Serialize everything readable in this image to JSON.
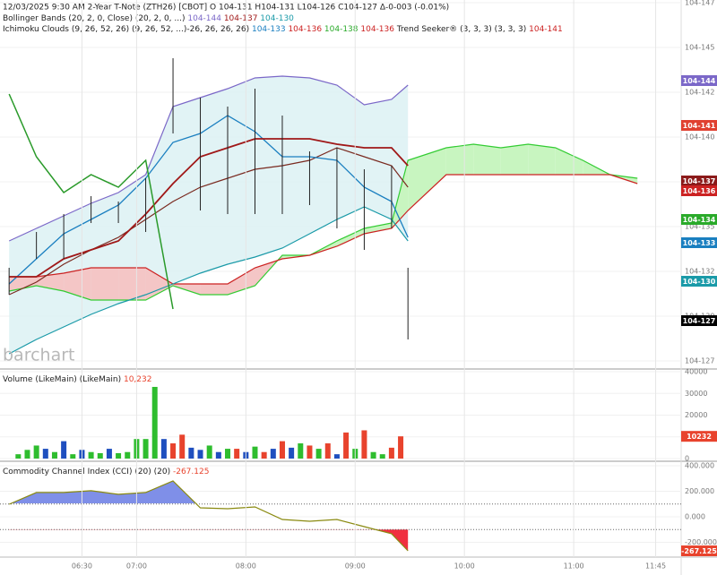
{
  "chart_data": [
    {
      "type": "ichimoku",
      "title": "12/03/2025  9:30 AM 2-Year T-Note (ZTH26) [CBOT] O 104-131 H104-131 L104-126 C104-127 Δ-0-003 (-0.01%)",
      "legend": [
        [
          {
            "text": "Bollinger Bands (20, 2, 0, Close) (20, 2, 0, ...)",
            "color": "#222"
          },
          {
            "text": " 104-144",
            "color": "#7b68c8"
          },
          {
            "text": " 104-137",
            "color": "#a01818"
          },
          {
            "text": " 104-130",
            "color": "#1a9aa8"
          }
        ],
        [
          {
            "text": "Ichimoku Clouds (9, 26, 52, 26) (9, 26, 52, ...)-26, 26, 26, 26)",
            "color": "#222"
          },
          {
            "text": " 104-133",
            "color": "#1a7fc0"
          },
          {
            "text": " 104-136",
            "color": "#cc2222"
          },
          {
            "text": " 104-138",
            "color": "#2aaa2a"
          },
          {
            "text": " 104-136",
            "color": "#cc2222"
          },
          {
            "text": " Trend Seeker® (3, 3, 3) (3, 3, 3)",
            "color": "#222"
          },
          {
            "text": " 104-141",
            "color": "#cc2222"
          }
        ]
      ],
      "watermark": "barchart",
      "x": [
        350,
        365,
        380,
        395,
        410,
        425,
        440,
        455,
        470,
        485,
        500,
        515,
        530,
        545,
        560,
        569,
        590,
        605,
        620,
        635,
        650,
        665,
        680,
        695
      ],
      "xlim": [
        345,
        719
      ],
      "ylim": [
        12.715,
        14.765
      ],
      "yticks": [
        {
          "value": 14.75,
          "label": "104-147"
        },
        {
          "value": 14.5,
          "label": "104-145"
        },
        {
          "value": 14.25,
          "label": "104-142"
        },
        {
          "value": 14.0,
          "label": "104-140"
        },
        {
          "value": 13.75,
          "label": "104-137"
        },
        {
          "value": 13.5,
          "label": "104-135"
        },
        {
          "value": 13.25,
          "label": "104-132"
        },
        {
          "value": 13.0,
          "label": "104-130"
        },
        {
          "value": 12.75,
          "label": "104-127"
        }
      ],
      "bollinger": {
        "fill": "#d9f0f2",
        "upper": {
          "color": "#7b68c8",
          "values": [
            13.42,
            13.49,
            13.56,
            13.63,
            13.69,
            13.79,
            14.17,
            14.22,
            14.27,
            14.33,
            14.34,
            14.33,
            14.29,
            14.18,
            14.21,
            14.29,
            null,
            null,
            null,
            null,
            null,
            null,
            null,
            null
          ]
        },
        "middle": {
          "color": "#7a2a20",
          "values": [
            13.12,
            13.19,
            13.29,
            13.37,
            13.44,
            13.54,
            13.64,
            13.72,
            13.77,
            13.82,
            13.84,
            13.87,
            13.94,
            13.89,
            13.84,
            13.72,
            null,
            null,
            null,
            null,
            null,
            null,
            null,
            null
          ]
        },
        "lower": {
          "color": "#1a9aa8",
          "values": [
            12.79,
            12.87,
            12.94,
            13.01,
            13.07,
            13.12,
            13.18,
            13.24,
            13.29,
            13.33,
            13.38,
            13.46,
            13.54,
            13.61,
            13.54,
            13.42,
            null,
            null,
            null,
            null,
            null,
            null,
            null,
            null
          ]
        }
      },
      "ichimoku": {
        "up_fill": "#c8f5c0",
        "down_fill": "#f4c6c6",
        "conversion": {
          "color": "#1a7fc0",
          "values": [
            13.18,
            13.32,
            13.46,
            13.54,
            13.62,
            13.77,
            13.97,
            14.02,
            14.12,
            14.03,
            13.89,
            13.89,
            13.87,
            13.72,
            13.64,
            13.44,
            null,
            null,
            null,
            null,
            null,
            null,
            null,
            null
          ]
        },
        "base": {
          "color": "#a01818",
          "values": [
            13.22,
            13.22,
            13.32,
            13.37,
            13.42,
            13.57,
            13.74,
            13.89,
            13.94,
            13.99,
            13.99,
            13.99,
            13.96,
            13.94,
            13.94,
            13.84,
            null,
            null,
            null,
            null,
            null,
            null,
            null,
            null
          ]
        },
        "lagging": {
          "color": "#2a9a2a",
          "values": [
            14.24,
            13.89,
            13.69,
            13.79,
            13.72,
            13.87,
            13.04,
            null,
            null,
            null,
            null,
            null,
            null,
            null,
            null,
            null,
            null,
            null,
            null,
            null,
            null,
            null,
            null,
            null
          ]
        },
        "span_a": {
          "color": "#33cc33",
          "values": [
            13.14,
            13.17,
            13.14,
            13.09,
            13.09,
            13.09,
            13.17,
            13.12,
            13.12,
            13.17,
            13.34,
            13.34,
            13.42,
            13.49,
            13.52,
            13.87,
            13.94,
            13.96,
            13.94,
            13.96,
            13.94,
            13.87,
            13.79,
            13.77
          ]
        },
        "span_b": {
          "color": "#cc2222",
          "values": [
            13.22,
            13.22,
            13.24,
            13.27,
            13.27,
            13.27,
            13.18,
            13.18,
            13.18,
            13.27,
            13.32,
            13.34,
            13.39,
            13.46,
            13.49,
            13.59,
            13.79,
            13.79,
            13.79,
            13.79,
            13.79,
            13.79,
            13.79,
            13.74
          ]
        }
      },
      "price": {
        "color": "#222",
        "high": [
          13.27,
          13.47,
          13.57,
          13.67,
          13.64,
          13.77,
          14.44,
          14.22,
          14.17,
          14.27,
          14.12,
          13.92,
          13.94,
          13.82,
          13.84,
          13.27,
          null,
          null,
          null,
          null,
          null,
          null,
          null,
          null
        ],
        "low": [
          13.12,
          13.32,
          13.32,
          13.52,
          13.52,
          13.47,
          14.02,
          13.59,
          13.57,
          13.57,
          13.57,
          13.62,
          13.49,
          13.37,
          13.49,
          12.87,
          null,
          null,
          null,
          null,
          null,
          null,
          null,
          null
        ]
      },
      "badges": [
        {
          "label": "104-144",
          "value": 14.315,
          "color": "#7b68c8"
        },
        {
          "label": "104-141",
          "value": 14.065,
          "color": "#e04030"
        },
        {
          "label": "104-137",
          "value": 13.755,
          "color": "#8b1a1a"
        },
        {
          "label": "104-136",
          "value": 13.7,
          "color": "#cc2222"
        },
        {
          "label": "104-134",
          "value": 13.54,
          "color": "#2aaa2a"
        },
        {
          "label": "104-133",
          "value": 13.41,
          "color": "#1a7fc0"
        },
        {
          "label": "104-130",
          "value": 13.195,
          "color": "#1a9aa8"
        },
        {
          "label": "104-127",
          "value": 12.975,
          "color": "#000000"
        }
      ]
    },
    {
      "type": "bar",
      "legend": [
        [
          {
            "text": "Volume (LikeMain)  (LikeMain)",
            "color": "#222"
          },
          {
            "text": " 10,232",
            "color": "#e8432d"
          }
        ]
      ],
      "x": [
        355,
        360,
        365,
        370,
        375,
        380,
        385,
        390,
        395,
        400,
        405,
        410,
        415,
        420,
        425,
        430,
        435,
        440,
        445,
        450,
        455,
        460,
        465,
        470,
        475,
        480,
        485,
        490,
        495,
        500,
        505,
        510,
        515,
        520,
        525,
        530,
        535,
        540,
        545,
        550,
        555,
        560,
        565
      ],
      "values": [
        2000,
        4000,
        6000,
        4500,
        3000,
        8000,
        2000,
        4000,
        3000,
        2500,
        4500,
        2500,
        3000,
        9000,
        9000,
        33000,
        9000,
        7000,
        11000,
        5000,
        4000,
        6000,
        3000,
        4500,
        4500,
        3000,
        5500,
        3000,
        4500,
        8000,
        5000,
        7000,
        6000,
        4500,
        7000,
        2000,
        12000,
        4500,
        13000,
        3000,
        2000,
        5000,
        10232
      ],
      "colors": [
        "#2ebd2e",
        "#2ebd2e",
        "#2ebd2e",
        "#1f4fbf",
        "#2ebd2e",
        "#1f4fbf",
        "#2ebd2e",
        "#1f4fbf",
        "#2ebd2e",
        "#2ebd2e",
        "#1f4fbf",
        "#2ebd2e",
        "#2ebd2e",
        "#2ebd2e",
        "#2ebd2e",
        "#2ebd2e",
        "#1f4fbf",
        "#e8432d",
        "#e8432d",
        "#1f4fbf",
        "#1f4fbf",
        "#2ebd2e",
        "#1f4fbf",
        "#2ebd2e",
        "#e8432d",
        "#1f4fbf",
        "#2ebd2e",
        "#e8432d",
        "#1f4fbf",
        "#e8432d",
        "#1f4fbf",
        "#2ebd2e",
        "#e8432d",
        "#2ebd2e",
        "#e8432d",
        "#1f4fbf",
        "#e8432d",
        "#2ebd2e",
        "#e8432d",
        "#2ebd2e",
        "#2ebd2e",
        "#e8432d",
        "#e8432d"
      ],
      "xlim": [
        345,
        719
      ],
      "ylim": [
        0,
        40000
      ],
      "yticks": [
        40000,
        30000,
        20000,
        10000,
        0
      ],
      "badges": [
        {
          "label": "10232",
          "value": 10232,
          "color": "#e8432d"
        }
      ]
    },
    {
      "type": "cci",
      "legend": [
        [
          {
            "text": "Commodity Channel Index (CCI) (20) (20)",
            "color": "#222"
          },
          {
            "text": " -267.125",
            "color": "#e8432d"
          }
        ]
      ],
      "x": [
        350,
        365,
        380,
        395,
        410,
        425,
        440,
        455,
        470,
        485,
        500,
        515,
        530,
        545,
        560,
        569
      ],
      "values": [
        98,
        190,
        190,
        204,
        176,
        190,
        281,
        70,
        63,
        77,
        -21,
        -35,
        -21,
        -77,
        -133,
        -267.125
      ],
      "color": "#8a8a10",
      "levels": [
        100,
        -100
      ],
      "fill_above": "#7f8fe8",
      "fill_below": "#f03040",
      "xlim": [
        345,
        719
      ],
      "ylim": [
        -316,
        414
      ],
      "yticks": [
        {
          "value": 400,
          "label": "400.000"
        },
        {
          "value": 200,
          "label": "200.000"
        },
        {
          "value": 0,
          "label": "0.000"
        },
        {
          "value": -200,
          "label": "-200.000"
        }
      ],
      "xticks": [
        {
          "value": 390,
          "label": "06:30"
        },
        {
          "value": 420,
          "label": "07:00"
        },
        {
          "value": 480,
          "label": "08:00"
        },
        {
          "value": 540,
          "label": "09:00"
        },
        {
          "value": 600,
          "label": "10:00"
        },
        {
          "value": 660,
          "label": "11:00"
        },
        {
          "value": 705,
          "label": "11:45"
        }
      ],
      "badges": [
        {
          "label": "-267.125",
          "value": -267.125,
          "color": "#e8432d"
        }
      ]
    }
  ]
}
